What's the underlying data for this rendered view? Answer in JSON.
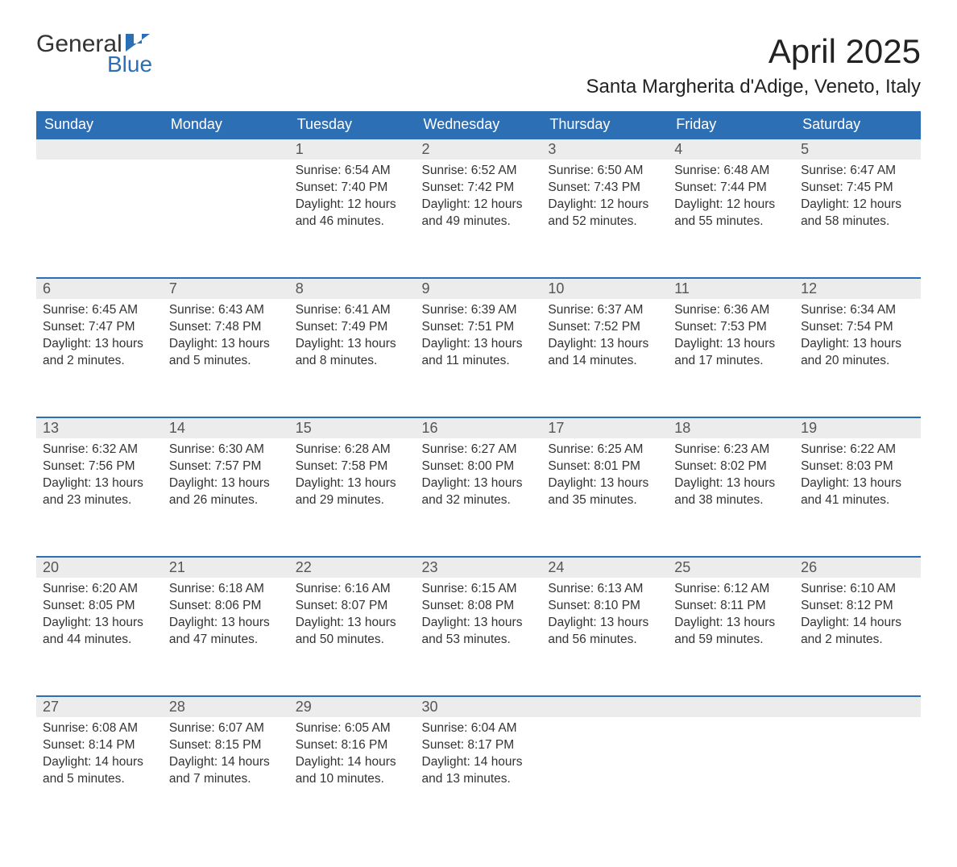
{
  "brand": {
    "word1": "General",
    "word2": "Blue",
    "logo_color": "#2d6fb5"
  },
  "title": "April 2025",
  "location": "Santa Margherita d'Adige, Veneto, Italy",
  "day_headers": [
    "Sunday",
    "Monday",
    "Tuesday",
    "Wednesday",
    "Thursday",
    "Friday",
    "Saturday"
  ],
  "colors": {
    "header_bg": "#2d6fb5",
    "header_text": "#ffffff",
    "daynum_bg": "#ececec",
    "text": "#333333"
  },
  "weeks": [
    [
      null,
      null,
      {
        "n": "1",
        "sunrise": "Sunrise: 6:54 AM",
        "sunset": "Sunset: 7:40 PM",
        "day1": "Daylight: 12 hours",
        "day2": "and 46 minutes."
      },
      {
        "n": "2",
        "sunrise": "Sunrise: 6:52 AM",
        "sunset": "Sunset: 7:42 PM",
        "day1": "Daylight: 12 hours",
        "day2": "and 49 minutes."
      },
      {
        "n": "3",
        "sunrise": "Sunrise: 6:50 AM",
        "sunset": "Sunset: 7:43 PM",
        "day1": "Daylight: 12 hours",
        "day2": "and 52 minutes."
      },
      {
        "n": "4",
        "sunrise": "Sunrise: 6:48 AM",
        "sunset": "Sunset: 7:44 PM",
        "day1": "Daylight: 12 hours",
        "day2": "and 55 minutes."
      },
      {
        "n": "5",
        "sunrise": "Sunrise: 6:47 AM",
        "sunset": "Sunset: 7:45 PM",
        "day1": "Daylight: 12 hours",
        "day2": "and 58 minutes."
      }
    ],
    [
      {
        "n": "6",
        "sunrise": "Sunrise: 6:45 AM",
        "sunset": "Sunset: 7:47 PM",
        "day1": "Daylight: 13 hours",
        "day2": "and 2 minutes."
      },
      {
        "n": "7",
        "sunrise": "Sunrise: 6:43 AM",
        "sunset": "Sunset: 7:48 PM",
        "day1": "Daylight: 13 hours",
        "day2": "and 5 minutes."
      },
      {
        "n": "8",
        "sunrise": "Sunrise: 6:41 AM",
        "sunset": "Sunset: 7:49 PM",
        "day1": "Daylight: 13 hours",
        "day2": "and 8 minutes."
      },
      {
        "n": "9",
        "sunrise": "Sunrise: 6:39 AM",
        "sunset": "Sunset: 7:51 PM",
        "day1": "Daylight: 13 hours",
        "day2": "and 11 minutes."
      },
      {
        "n": "10",
        "sunrise": "Sunrise: 6:37 AM",
        "sunset": "Sunset: 7:52 PM",
        "day1": "Daylight: 13 hours",
        "day2": "and 14 minutes."
      },
      {
        "n": "11",
        "sunrise": "Sunrise: 6:36 AM",
        "sunset": "Sunset: 7:53 PM",
        "day1": "Daylight: 13 hours",
        "day2": "and 17 minutes."
      },
      {
        "n": "12",
        "sunrise": "Sunrise: 6:34 AM",
        "sunset": "Sunset: 7:54 PM",
        "day1": "Daylight: 13 hours",
        "day2": "and 20 minutes."
      }
    ],
    [
      {
        "n": "13",
        "sunrise": "Sunrise: 6:32 AM",
        "sunset": "Sunset: 7:56 PM",
        "day1": "Daylight: 13 hours",
        "day2": "and 23 minutes."
      },
      {
        "n": "14",
        "sunrise": "Sunrise: 6:30 AM",
        "sunset": "Sunset: 7:57 PM",
        "day1": "Daylight: 13 hours",
        "day2": "and 26 minutes."
      },
      {
        "n": "15",
        "sunrise": "Sunrise: 6:28 AM",
        "sunset": "Sunset: 7:58 PM",
        "day1": "Daylight: 13 hours",
        "day2": "and 29 minutes."
      },
      {
        "n": "16",
        "sunrise": "Sunrise: 6:27 AM",
        "sunset": "Sunset: 8:00 PM",
        "day1": "Daylight: 13 hours",
        "day2": "and 32 minutes."
      },
      {
        "n": "17",
        "sunrise": "Sunrise: 6:25 AM",
        "sunset": "Sunset: 8:01 PM",
        "day1": "Daylight: 13 hours",
        "day2": "and 35 minutes."
      },
      {
        "n": "18",
        "sunrise": "Sunrise: 6:23 AM",
        "sunset": "Sunset: 8:02 PM",
        "day1": "Daylight: 13 hours",
        "day2": "and 38 minutes."
      },
      {
        "n": "19",
        "sunrise": "Sunrise: 6:22 AM",
        "sunset": "Sunset: 8:03 PM",
        "day1": "Daylight: 13 hours",
        "day2": "and 41 minutes."
      }
    ],
    [
      {
        "n": "20",
        "sunrise": "Sunrise: 6:20 AM",
        "sunset": "Sunset: 8:05 PM",
        "day1": "Daylight: 13 hours",
        "day2": "and 44 minutes."
      },
      {
        "n": "21",
        "sunrise": "Sunrise: 6:18 AM",
        "sunset": "Sunset: 8:06 PM",
        "day1": "Daylight: 13 hours",
        "day2": "and 47 minutes."
      },
      {
        "n": "22",
        "sunrise": "Sunrise: 6:16 AM",
        "sunset": "Sunset: 8:07 PM",
        "day1": "Daylight: 13 hours",
        "day2": "and 50 minutes."
      },
      {
        "n": "23",
        "sunrise": "Sunrise: 6:15 AM",
        "sunset": "Sunset: 8:08 PM",
        "day1": "Daylight: 13 hours",
        "day2": "and 53 minutes."
      },
      {
        "n": "24",
        "sunrise": "Sunrise: 6:13 AM",
        "sunset": "Sunset: 8:10 PM",
        "day1": "Daylight: 13 hours",
        "day2": "and 56 minutes."
      },
      {
        "n": "25",
        "sunrise": "Sunrise: 6:12 AM",
        "sunset": "Sunset: 8:11 PM",
        "day1": "Daylight: 13 hours",
        "day2": "and 59 minutes."
      },
      {
        "n": "26",
        "sunrise": "Sunrise: 6:10 AM",
        "sunset": "Sunset: 8:12 PM",
        "day1": "Daylight: 14 hours",
        "day2": "and 2 minutes."
      }
    ],
    [
      {
        "n": "27",
        "sunrise": "Sunrise: 6:08 AM",
        "sunset": "Sunset: 8:14 PM",
        "day1": "Daylight: 14 hours",
        "day2": "and 5 minutes."
      },
      {
        "n": "28",
        "sunrise": "Sunrise: 6:07 AM",
        "sunset": "Sunset: 8:15 PM",
        "day1": "Daylight: 14 hours",
        "day2": "and 7 minutes."
      },
      {
        "n": "29",
        "sunrise": "Sunrise: 6:05 AM",
        "sunset": "Sunset: 8:16 PM",
        "day1": "Daylight: 14 hours",
        "day2": "and 10 minutes."
      },
      {
        "n": "30",
        "sunrise": "Sunrise: 6:04 AM",
        "sunset": "Sunset: 8:17 PM",
        "day1": "Daylight: 14 hours",
        "day2": "and 13 minutes."
      },
      null,
      null,
      null
    ]
  ]
}
